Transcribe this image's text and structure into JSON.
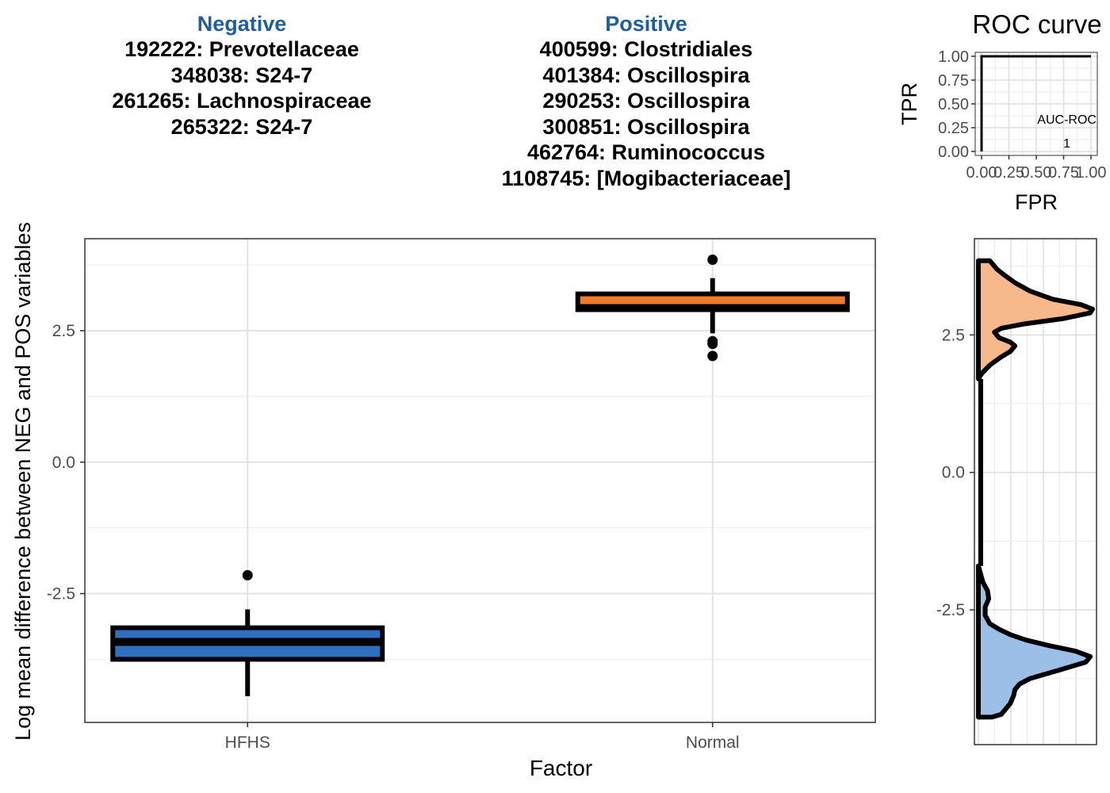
{
  "negative": {
    "title": "Negative",
    "items": [
      "192222: Prevotellaceae",
      "348038: S24-7",
      "261265: Lachnospiraceae",
      "265322: S24-7"
    ]
  },
  "positive": {
    "title": "Positive",
    "items": [
      "400599: Clostridiales",
      "401384: Oscillospira",
      "290253: Oscillospira",
      "300851: Oscillospira",
      "462764: Ruminococcus",
      "1108745: [Mogibacteriaceae]"
    ]
  },
  "colors": {
    "hfhs": "#2f6fbf",
    "normal": "#ef7b2a",
    "hfhs_density": "#9bbfe6",
    "normal_density": "#f7b98c",
    "header": "#1f5fa0"
  },
  "chart_data": [
    {
      "type": "box",
      "xlabel": "Factor",
      "ylabel": "Log mean difference between NEG and POS variables",
      "categories": [
        "HFHS",
        "Normal"
      ],
      "yticks": [
        -2.5,
        0.0,
        2.5
      ],
      "ytick_labels": [
        "-2.5",
        "0.0",
        "2.5"
      ],
      "ylim": [
        -4.95,
        4.25
      ],
      "grid": true,
      "boxes": [
        {
          "name": "HFHS",
          "whisker_low": -4.45,
          "q1": -3.75,
          "median": -3.42,
          "q3": -3.15,
          "whisker_high": -2.8,
          "outliers": [
            -2.15
          ],
          "color": "#2f6fbf"
        },
        {
          "name": "Normal",
          "whisker_low": 2.45,
          "q1": 2.9,
          "median": 2.93,
          "q3": 3.2,
          "whisker_high": 3.5,
          "outliers": [
            3.85,
            2.3,
            2.25,
            2.02
          ],
          "color": "#ef7b2a"
        }
      ]
    },
    {
      "type": "line",
      "title": "ROC curve",
      "xlabel": "FPR",
      "ylabel": "TPR",
      "xticks": [
        0,
        0.25,
        0.5,
        0.75,
        1.0
      ],
      "xtick_labels": [
        "0.00",
        "0.25",
        "0.50",
        "0.75",
        "1.00"
      ],
      "yticks": [
        0,
        0.25,
        0.5,
        0.75,
        1.0
      ],
      "ytick_labels": [
        "0.00",
        "0.25",
        "0.50",
        "0.75",
        "1.00"
      ],
      "xlim": [
        0,
        1
      ],
      "ylim": [
        0,
        1
      ],
      "series": [
        {
          "x": [
            0,
            0,
            1
          ],
          "y": [
            0,
            1,
            1
          ]
        }
      ],
      "annotation": {
        "label": "AUC-ROC",
        "value": "1"
      }
    },
    {
      "type": "area",
      "yticks": [
        -2.5,
        0.0,
        2.5
      ],
      "ytick_labels": [
        "-2.5",
        "0.0",
        "2.5"
      ],
      "ylim": [
        -4.95,
        4.25
      ],
      "series": [
        {
          "name": "HFHS",
          "color": "#9bbfe6",
          "y": [
            -4.45,
            -4.4,
            -4.2,
            -4.05,
            -3.95,
            -3.85,
            -3.75,
            -3.6,
            -3.45,
            -3.35,
            -3.25,
            -3.15,
            -3.05,
            -2.95,
            -2.85,
            -2.75,
            -2.6,
            -2.45,
            -2.3,
            -2.15,
            -2.0,
            -1.85,
            -1.7
          ],
          "density": [
            0.12,
            0.2,
            0.28,
            0.31,
            0.32,
            0.36,
            0.45,
            0.7,
            0.94,
            0.98,
            0.85,
            0.62,
            0.42,
            0.28,
            0.18,
            0.1,
            0.06,
            0.06,
            0.09,
            0.08,
            0.04,
            0.02,
            0.0
          ]
        },
        {
          "name": "Normal",
          "color": "#f7b98c",
          "y": [
            1.7,
            1.8,
            1.95,
            2.1,
            2.2,
            2.3,
            2.37,
            2.45,
            2.55,
            2.62,
            2.7,
            2.8,
            2.9,
            2.97,
            3.05,
            3.15,
            3.3,
            3.45,
            3.6,
            3.7,
            3.8,
            3.85
          ],
          "density": [
            0.0,
            0.03,
            0.1,
            0.2,
            0.28,
            0.32,
            0.28,
            0.18,
            0.14,
            0.2,
            0.4,
            0.75,
            0.98,
            1.0,
            0.9,
            0.65,
            0.45,
            0.32,
            0.22,
            0.16,
            0.12,
            0.1
          ]
        }
      ]
    }
  ]
}
